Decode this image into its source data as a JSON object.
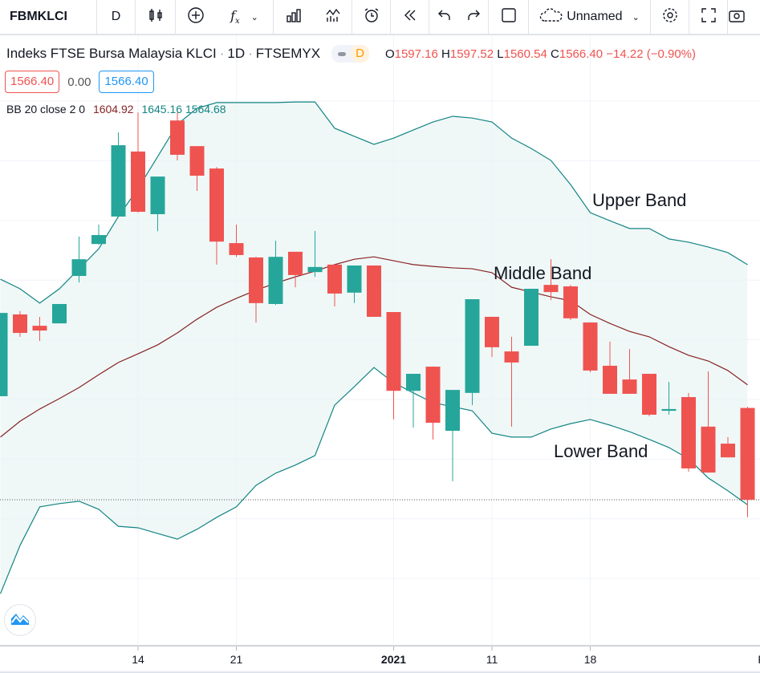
{
  "toolbar": {
    "symbol": "FBMKLCI",
    "interval": "D",
    "layout_name": "Unnamed"
  },
  "legend": {
    "title": "Indeks FTSE Bursa Malaysia KLCI",
    "sep": "·",
    "interval": "1D",
    "exchange": "FTSEMYX",
    "badge": "D",
    "o_label": "O",
    "o": "1597.16",
    "h_label": "H",
    "h": "1597.52",
    "l_label": "L",
    "l": "1560.54",
    "c_label": "C",
    "c": "1566.40",
    "change": "−14.22 (−0.90%)",
    "bid": "1566.40",
    "spread": "0.00",
    "ask": "1566.40"
  },
  "indicator": {
    "name": "BB 20 close 2 0",
    "basis": "1604.92",
    "upper": "1645.16",
    "lower": "1564.68"
  },
  "annotations": {
    "upper": "Upper Band",
    "middle": "Middle Band",
    "lower": "Lower Band"
  },
  "colors": {
    "up": "#26a69a",
    "down": "#ef5350",
    "basis": "#872323",
    "band": "#138484",
    "fill": "#e8f5f3"
  },
  "chart_data": {
    "type": "candlestick",
    "ylim": [
      1532,
      1710
    ],
    "last_price": 1566.4,
    "x_ticks": [
      {
        "label": "14",
        "index": 7
      },
      {
        "label": "21",
        "index": 12
      },
      {
        "label": "2021",
        "index": 20,
        "bold": true
      },
      {
        "label": "11",
        "index": 25
      },
      {
        "label": "18",
        "index": 30
      },
      {
        "label": "F",
        "index": 38.7
      }
    ],
    "candles": [
      [
        1601.1,
        1629.0,
        1601.1,
        1629.0
      ],
      [
        1628.5,
        1629.6,
        1621.0,
        1622.3
      ],
      [
        1624.7,
        1627.7,
        1619.6,
        1623.1
      ],
      [
        1625.5,
        1632.0,
        1625.5,
        1632.0
      ],
      [
        1641.4,
        1654.6,
        1639.2,
        1647.0
      ],
      [
        1652.1,
        1658.6,
        1651.9,
        1655.1
      ],
      [
        1661.3,
        1689.5,
        1661.3,
        1685.2
      ],
      [
        1683.1,
        1696.2,
        1662.6,
        1662.9
      ],
      [
        1662.1,
        1674.7,
        1656.4,
        1674.7
      ],
      [
        1693.5,
        1696.2,
        1680.1,
        1682.0
      ],
      [
        1684.9,
        1684.9,
        1669.9,
        1675.0
      ],
      [
        1677.4,
        1677.9,
        1645.2,
        1652.9
      ],
      [
        1652.4,
        1658.6,
        1647.8,
        1648.4
      ],
      [
        1647.6,
        1647.8,
        1625.8,
        1632.3
      ],
      [
        1632.0,
        1653.2,
        1631.7,
        1647.8
      ],
      [
        1649.5,
        1649.5,
        1637.6,
        1641.7
      ],
      [
        1642.7,
        1656.5,
        1641.1,
        1644.4
      ],
      [
        1645.2,
        1645.2,
        1631.2,
        1635.5
      ],
      [
        1635.8,
        1644.9,
        1632.3,
        1644.9
      ],
      [
        1644.9,
        1644.9,
        1627.7,
        1627.7
      ],
      [
        1629.3,
        1629.3,
        1593.3,
        1602.9
      ],
      [
        1602.9,
        1608.6,
        1590.6,
        1608.6
      ],
      [
        1611.0,
        1611.0,
        1586.6,
        1592.2
      ],
      [
        1589.5,
        1603.2,
        1572.6,
        1603.2
      ],
      [
        1602.2,
        1633.6,
        1598.1,
        1633.6
      ],
      [
        1627.7,
        1627.7,
        1614.2,
        1617.5
      ],
      [
        1616.1,
        1621.0,
        1590.9,
        1612.4
      ],
      [
        1618.0,
        1637.1,
        1618.0,
        1637.1
      ],
      [
        1638.4,
        1647.0,
        1633.3,
        1636.0
      ],
      [
        1637.9,
        1638.4,
        1626.6,
        1627.2
      ],
      [
        1625.8,
        1625.8,
        1609.1,
        1609.7
      ],
      [
        1611.3,
        1619.4,
        1601.9,
        1601.9
      ],
      [
        1606.7,
        1616.9,
        1601.9,
        1601.9
      ],
      [
        1608.6,
        1608.6,
        1594.4,
        1594.9
      ],
      [
        1596.2,
        1605.9,
        1594.9,
        1596.8
      ],
      [
        1600.8,
        1602.2,
        1575.8,
        1576.9
      ],
      [
        1590.9,
        1609.4,
        1575.5,
        1575.5
      ],
      [
        1585.2,
        1587.4,
        1580.6,
        1580.6
      ],
      [
        1597.16,
        1597.52,
        1560.54,
        1566.4
      ]
    ],
    "upper": [
      1640.3,
      1637.1,
      1632.3,
      1637.1,
      1643.8,
      1650.5,
      1661.3,
      1670.7,
      1681.4,
      1692.2,
      1697.6,
      1699.5,
      1699.5,
      1699.5,
      1699.5,
      1699.7,
      1699.7,
      1690.9,
      1688.2,
      1685.5,
      1687.6,
      1690.3,
      1693.0,
      1694.9,
      1694.3,
      1693.0,
      1687.6,
      1684.1,
      1680.1,
      1672.0,
      1662.6,
      1659.9,
      1657.3,
      1657.3,
      1653.8,
      1652.7,
      1651.1,
      1649.2,
      1645.16
    ],
    "basis": [
      1587.4,
      1592.7,
      1596.8,
      1600.3,
      1604.0,
      1608.3,
      1612.4,
      1615.3,
      1618.3,
      1622.3,
      1626.9,
      1630.9,
      1633.9,
      1636.6,
      1639.0,
      1641.1,
      1643.0,
      1645.2,
      1647.0,
      1647.8,
      1646.5,
      1645.2,
      1644.6,
      1644.1,
      1643.8,
      1642.5,
      1637.6,
      1636.0,
      1634.4,
      1633.1,
      1628.5,
      1625.5,
      1622.8,
      1621.0,
      1617.7,
      1614.8,
      1612.9,
      1609.7,
      1604.92
    ],
    "lower": [
      1534.9,
      1551.1,
      1564.0,
      1565.1,
      1565.9,
      1563.2,
      1557.5,
      1557.0,
      1555.1,
      1553.2,
      1556.5,
      1560.5,
      1564.0,
      1571.2,
      1575.3,
      1578.0,
      1581.2,
      1598.1,
      1604.3,
      1610.7,
      1605.6,
      1602.2,
      1598.9,
      1597.6,
      1596.2,
      1588.7,
      1587.4,
      1587.4,
      1590.1,
      1591.9,
      1593.3,
      1591.4,
      1589.2,
      1586.6,
      1583.9,
      1580.1,
      1573.7,
      1569.4,
      1564.68
    ]
  }
}
